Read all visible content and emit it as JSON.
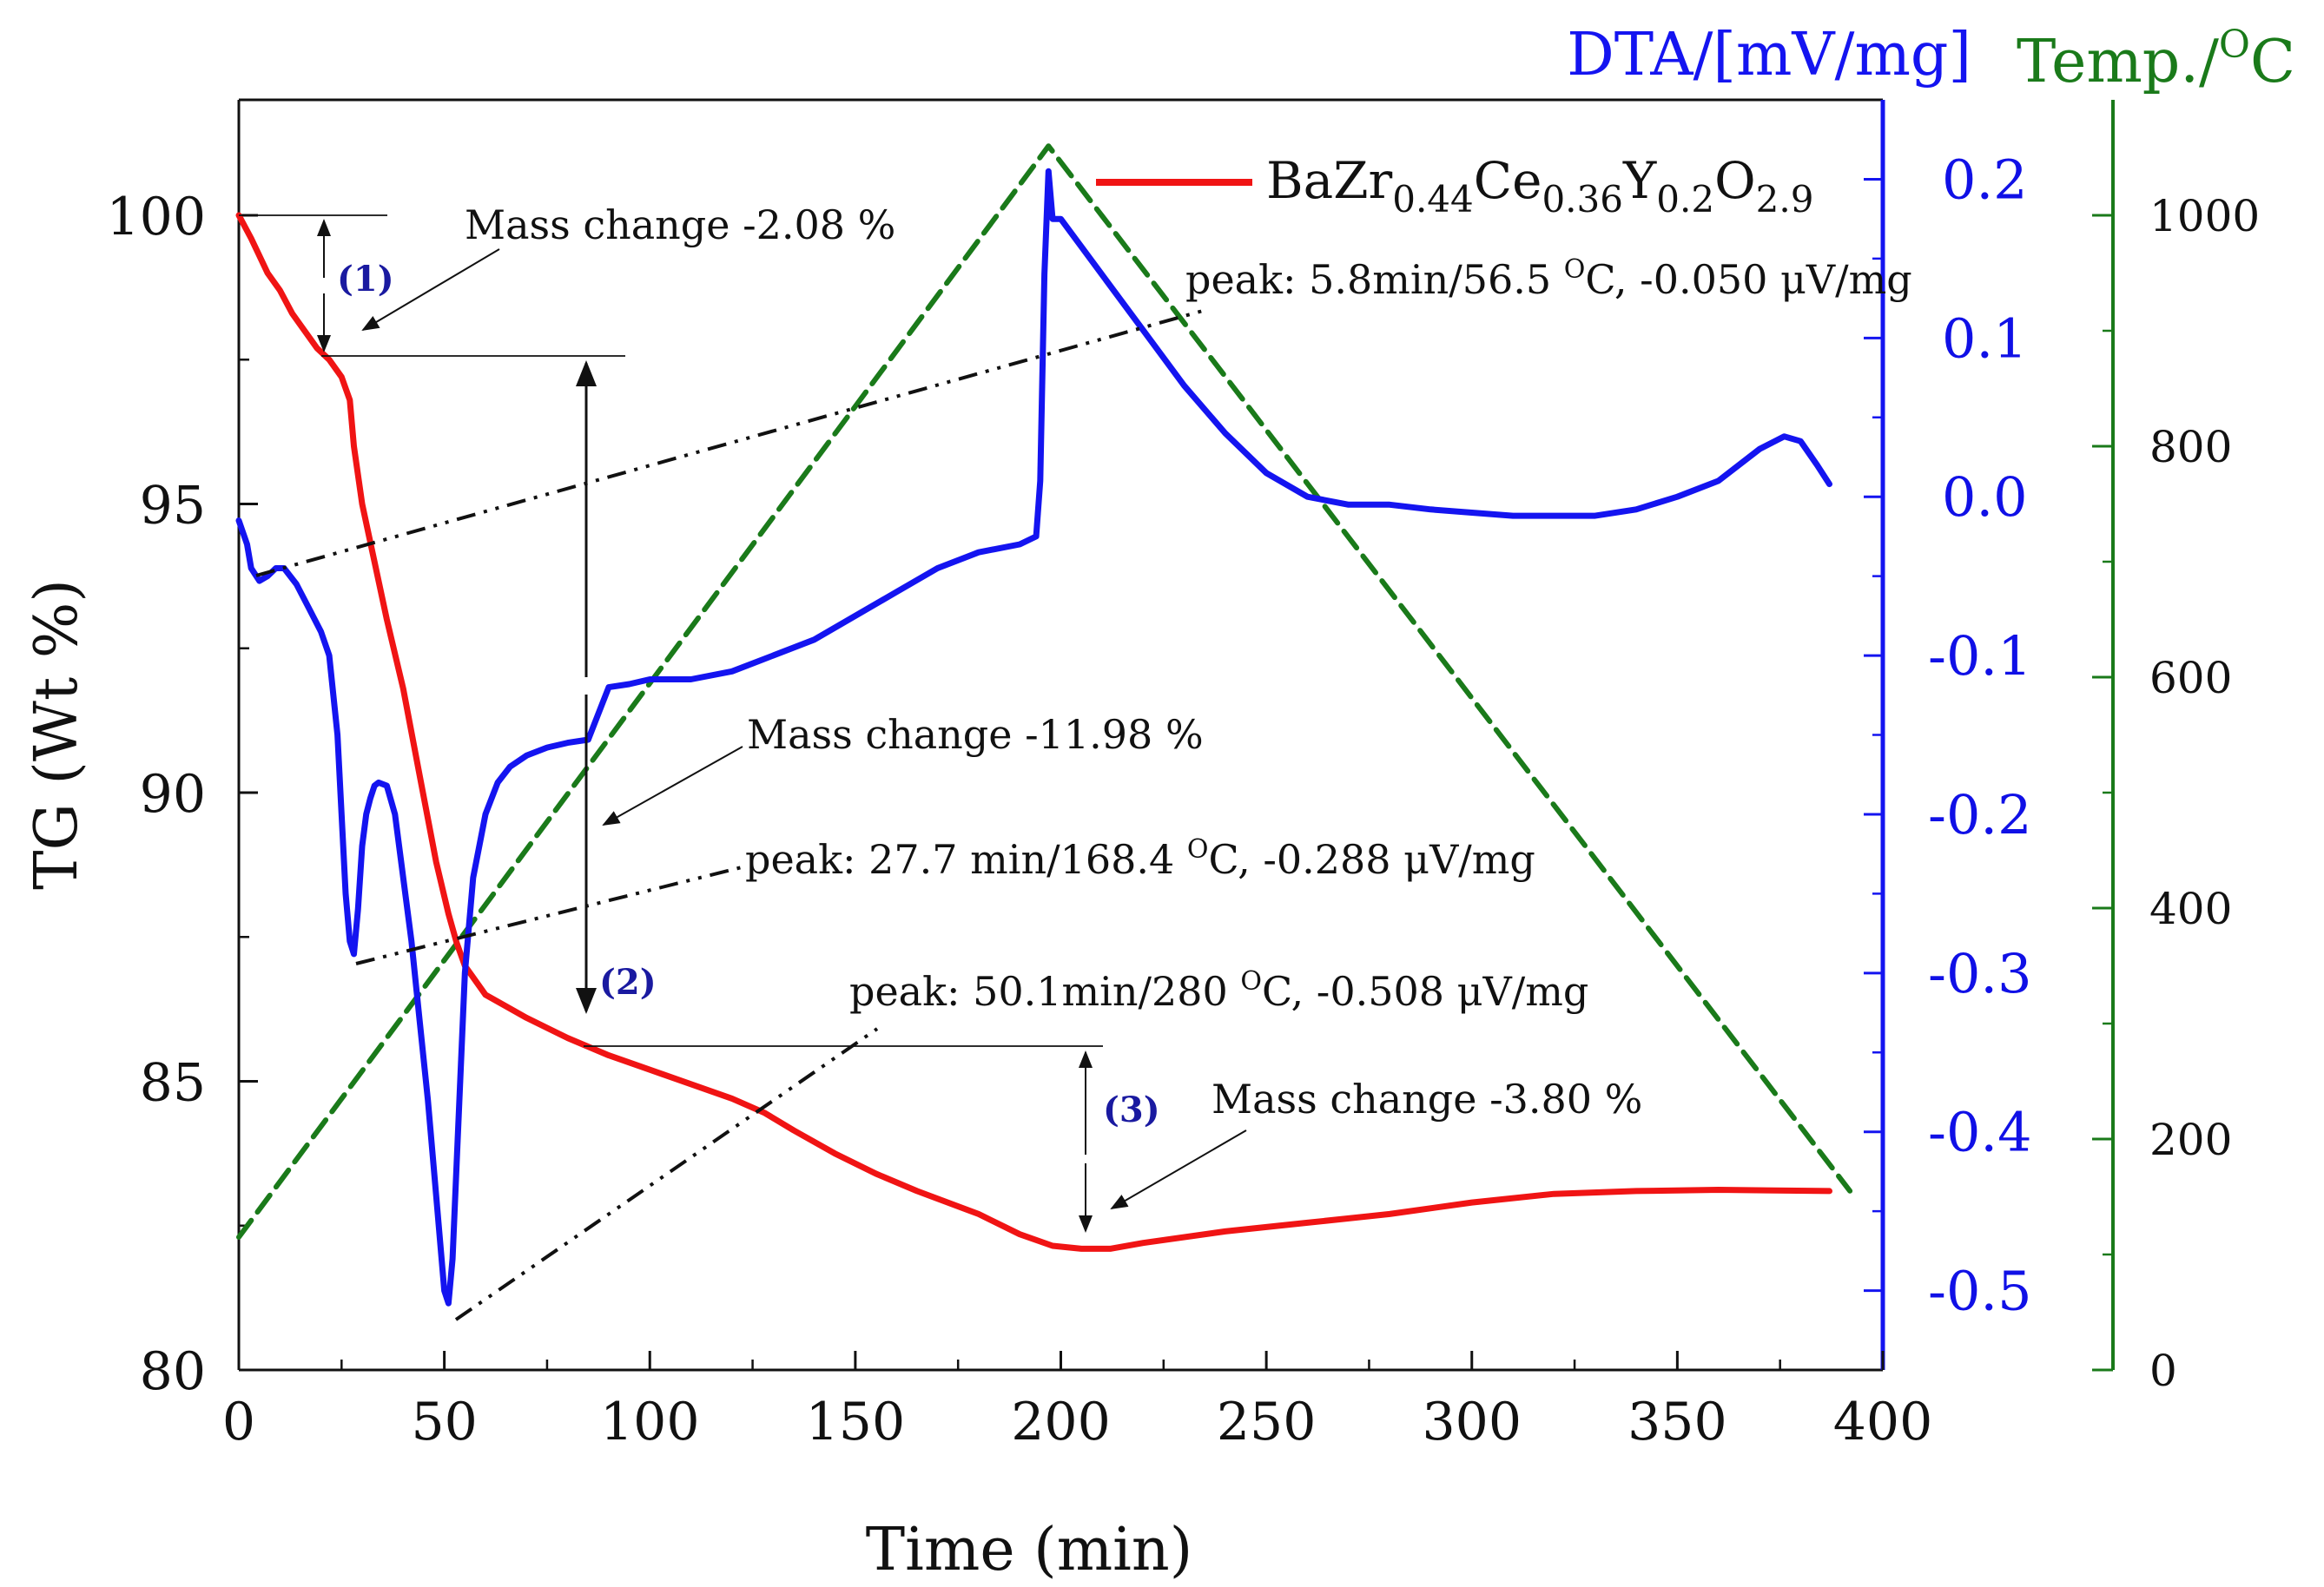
{
  "chart_data": {
    "type": "line",
    "title": "",
    "xlabel": "Time (min)",
    "ylabel_left": "TG (Wt %)",
    "ylabel_right_dta": "DTA/[mV/mg]",
    "ylabel_right_temp": "Temp./",
    "ylabel_right_temp_sup": "O",
    "ylabel_right_temp_unit": "C",
    "xlim": [
      0,
      400
    ],
    "ylim_tg": [
      80,
      102
    ],
    "ylim_dta": [
      -0.55,
      0.25
    ],
    "ylim_temp": [
      0,
      1100
    ],
    "x_ticks": [
      "0",
      "50",
      "100",
      "150",
      "200",
      "250",
      "300",
      "350",
      "400"
    ],
    "x_tick_values": [
      0,
      50,
      100,
      150,
      200,
      250,
      300,
      350,
      400
    ],
    "tg_ticks": [
      "80",
      "85",
      "90",
      "95",
      "100"
    ],
    "tg_tick_values": [
      80,
      85,
      90,
      95,
      100
    ],
    "dta_ticks": [
      "-0.5",
      "-0.4",
      "-0.3",
      "-0.2",
      "-0.1",
      "0.0",
      "0.1",
      "0.2"
    ],
    "dta_tick_values": [
      -0.5,
      -0.4,
      -0.3,
      -0.2,
      -0.1,
      0.0,
      0.1,
      0.2
    ],
    "temp_ticks": [
      "0",
      "200",
      "400",
      "600",
      "800",
      "1000"
    ],
    "temp_tick_values": [
      0,
      200,
      400,
      600,
      800,
      1000
    ],
    "colors": {
      "tg": "#f01414",
      "dta": "#1414f0",
      "temp": "#1a7a1a",
      "axis": "#111111",
      "dta_axis": "#1414f0",
      "temp_axis": "#1a7a1a",
      "annot_blue": "#1a1aa0"
    },
    "legend": {
      "position": "top-right",
      "base": "BaZr",
      "parts": [
        {
          "text": "0.44",
          "sub": true
        },
        {
          "text": "Ce",
          "sub": false
        },
        {
          "text": "0.36",
          "sub": true
        },
        {
          "text": "Y",
          "sub": false
        },
        {
          "text": "0.2",
          "sub": true
        },
        {
          "text": "O",
          "sub": false
        },
        {
          "text": "2.9",
          "sub": true
        }
      ]
    },
    "series": [
      {
        "name": "TG",
        "axis": "tg",
        "x": [
          0,
          3,
          5,
          7,
          10,
          13,
          16,
          19,
          22,
          25,
          27,
          28,
          30,
          33,
          36,
          40,
          44,
          48,
          51,
          53,
          55,
          57,
          60,
          65,
          70,
          80,
          90,
          100,
          110,
          120,
          128,
          135,
          145,
          155,
          165,
          180,
          190,
          198,
          205,
          212,
          220,
          240,
          260,
          280,
          300,
          320,
          340,
          360,
          387
        ],
        "y": [
          100.0,
          99.6,
          99.3,
          99.0,
          98.7,
          98.3,
          98.0,
          97.7,
          97.5,
          97.2,
          96.8,
          96.0,
          95.0,
          94.0,
          93.0,
          91.8,
          90.3,
          88.8,
          87.9,
          87.4,
          87.0,
          86.8,
          86.5,
          86.3,
          86.1,
          85.75,
          85.45,
          85.2,
          84.95,
          84.7,
          84.45,
          84.15,
          83.75,
          83.4,
          83.1,
          82.7,
          82.35,
          82.15,
          82.1,
          82.1,
          82.2,
          82.4,
          82.55,
          82.7,
          82.9,
          83.05,
          83.1,
          83.12,
          83.1
        ]
      },
      {
        "name": "DTA",
        "axis": "dta",
        "x": [
          0,
          2,
          3,
          5,
          7,
          9,
          11,
          14,
          17,
          20,
          22,
          24,
          25,
          26,
          27,
          28,
          29,
          30,
          31,
          32,
          33,
          34,
          36,
          38,
          40,
          42,
          44,
          46,
          48,
          49,
          50,
          51,
          52,
          53,
          55,
          57,
          60,
          63,
          66,
          70,
          75,
          80,
          85,
          90,
          95,
          100,
          110,
          120,
          130,
          140,
          150,
          160,
          170,
          180,
          190,
          194,
          195,
          196,
          197,
          198,
          200,
          210,
          220,
          230,
          240,
          250,
          260,
          270,
          280,
          290,
          300,
          310,
          320,
          330,
          340,
          350,
          360,
          370,
          376,
          380,
          384,
          387
        ],
        "y": [
          -0.015,
          -0.03,
          -0.045,
          -0.053,
          -0.05,
          -0.045,
          -0.045,
          -0.055,
          -0.07,
          -0.085,
          -0.1,
          -0.15,
          -0.2,
          -0.25,
          -0.28,
          -0.288,
          -0.26,
          -0.22,
          -0.2,
          -0.19,
          -0.182,
          -0.18,
          -0.182,
          -0.2,
          -0.24,
          -0.28,
          -0.33,
          -0.38,
          -0.44,
          -0.47,
          -0.5,
          -0.508,
          -0.48,
          -0.42,
          -0.3,
          -0.24,
          -0.2,
          -0.18,
          -0.17,
          -0.163,
          -0.158,
          -0.155,
          -0.153,
          -0.12,
          -0.118,
          -0.115,
          -0.115,
          -0.11,
          -0.1,
          -0.09,
          -0.075,
          -0.06,
          -0.045,
          -0.035,
          -0.03,
          -0.025,
          0.01,
          0.14,
          0.205,
          0.175,
          0.175,
          0.14,
          0.105,
          0.07,
          0.04,
          0.015,
          0.0,
          -0.005,
          -0.005,
          -0.008,
          -0.01,
          -0.012,
          -0.012,
          -0.012,
          -0.008,
          0.0,
          0.01,
          0.03,
          0.038,
          0.035,
          0.02,
          0.008
        ]
      },
      {
        "name": "Temperature",
        "axis": "temp",
        "x": [
          0,
          197,
          392
        ],
        "y": [
          115,
          1060,
          155
        ]
      }
    ],
    "annotations": [
      {
        "id": "mass1",
        "text": "Mass change -2.08 %"
      },
      {
        "id": "mass2",
        "text": "Mass change -11.98 %"
      },
      {
        "id": "mass3",
        "text": "Mass change -3.80 %"
      },
      {
        "id": "peak1",
        "text": "peak: 5.8min/56.5 ",
        "sup": "O",
        "rest": "C, -0.050 μV/mg"
      },
      {
        "id": "peak2",
        "text": "peak: 27.7 min/168.4 ",
        "sup": "O",
        "rest": "C, -0.288  μV/mg"
      },
      {
        "id": "peak3",
        "text": "peak: 50.1min/280 ",
        "sup": "O",
        "rest": "C, -0.508 μV/mg"
      },
      {
        "id": "step1",
        "text": "(1)"
      },
      {
        "id": "step2",
        "text": "(2)"
      },
      {
        "id": "step3",
        "text": "(3)"
      }
    ]
  }
}
